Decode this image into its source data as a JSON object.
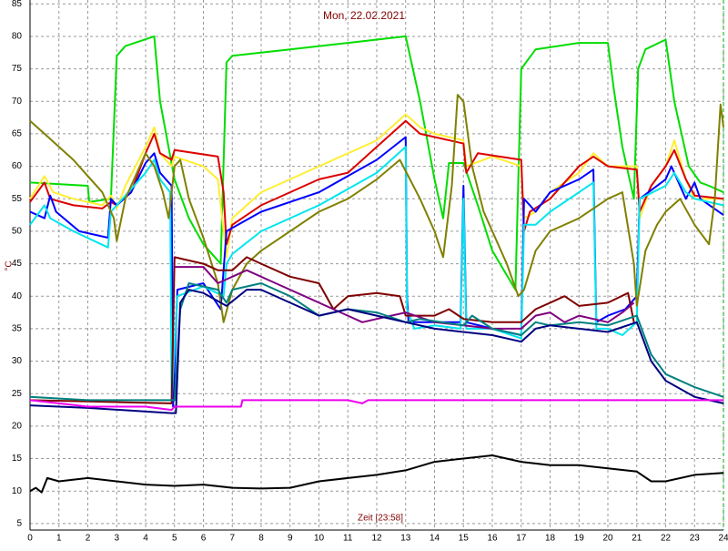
{
  "chart_data": {
    "type": "line",
    "title": "Mon, 22.02.2021",
    "xlabel": "Zeit [23:58]",
    "ylabel": "°C",
    "xlim": [
      0,
      24
    ],
    "ylim": [
      4,
      85.6
    ],
    "grid": true,
    "xticks": [
      0,
      1,
      2,
      3,
      4,
      5,
      6,
      7,
      8,
      9,
      10,
      11,
      12,
      13,
      14,
      15,
      16,
      17,
      18,
      19,
      20,
      21,
      22,
      23,
      24
    ],
    "yticks": [
      5,
      10,
      15,
      20,
      25,
      30,
      35,
      40,
      45,
      50,
      55,
      60,
      65,
      70,
      75,
      80,
      85
    ],
    "series": [
      {
        "color": "#00dd00",
        "x": [
          0,
          2,
          2.05,
          2.8,
          3,
          3.3,
          4.3,
          4.5,
          5,
          5.5,
          6,
          6.6,
          6.8,
          7,
          9,
          11,
          13,
          13.5,
          14,
          14.3,
          14.5,
          15,
          15.5,
          16,
          16.8,
          17,
          17.5,
          19,
          20,
          20.2,
          20.5,
          20.9,
          21.05,
          21.3,
          22,
          22.3,
          22.8,
          23.2,
          23.5,
          24
        ],
        "values": [
          57.5,
          57,
          54.5,
          55,
          77,
          78.5,
          80,
          70,
          58,
          52,
          48,
          45,
          76,
          77,
          78,
          79,
          80,
          70,
          58,
          52,
          60.5,
          60.5,
          54,
          47,
          41,
          75,
          78,
          79,
          79,
          72,
          63,
          55,
          75,
          78,
          79.5,
          70,
          60,
          57.5,
          57,
          56
        ]
      },
      {
        "color": "#ffee33",
        "x": [
          0,
          0.5,
          0.8,
          1.5,
          2,
          2.5,
          2.8,
          3,
          3.3,
          4,
          4.3,
          4.5,
          4.9,
          5,
          6,
          6.5,
          6.8,
          7,
          8,
          10,
          12,
          13,
          13.5,
          14,
          15,
          15.1,
          16,
          17,
          17.1,
          17.5,
          18,
          19,
          19.5,
          20,
          21,
          21.1,
          21.5,
          22,
          22.3,
          22.7,
          23,
          24
        ],
        "values": [
          55,
          58.5,
          56,
          55,
          54.5,
          54,
          55.5,
          53.5,
          57,
          63,
          66,
          62,
          60,
          61.5,
          60,
          58,
          46,
          52,
          56,
          60,
          64,
          68,
          66,
          65,
          64,
          60,
          61.5,
          60,
          52,
          53,
          56,
          59,
          62,
          60,
          60,
          52,
          57,
          60,
          64,
          58,
          55,
          55
        ]
      },
      {
        "color": "#dd0000",
        "x": [
          0,
          0.5,
          0.7,
          1.5,
          2.5,
          2.8,
          3,
          3.5,
          4,
          4.3,
          4.5,
          4.9,
          5,
          6.5,
          6.7,
          6.8,
          7,
          8,
          10,
          11,
          12,
          13,
          13.5,
          15,
          15.1,
          15.5,
          17,
          17.1,
          17.3,
          18,
          19,
          19.5,
          20,
          21,
          21.1,
          21.5,
          22,
          22.3,
          22.7,
          23,
          24
        ],
        "values": [
          54.5,
          57.5,
          55,
          54,
          53.5,
          54.5,
          54,
          56,
          62,
          65,
          62,
          61,
          62.5,
          61.5,
          56,
          48,
          51,
          54,
          58,
          59,
          63,
          67,
          65,
          63.5,
          59,
          62,
          61,
          50,
          53,
          55,
          60,
          61.5,
          60,
          59.5,
          53,
          57,
          60,
          62.5,
          58,
          55.5,
          55
        ]
      },
      {
        "color": "#0000ff",
        "x": [
          0,
          0.5,
          0.7,
          0.9,
          1.7,
          2.7,
          2.8,
          3,
          3.5,
          4,
          4.3,
          4.5,
          4.9,
          4.95,
          5.1,
          6,
          6.6,
          6.8,
          7,
          8,
          10,
          12,
          13,
          13.05,
          13.1,
          14,
          14.9,
          15,
          15.1,
          16,
          17,
          17.1,
          17.5,
          18,
          19,
          19.5,
          19.6,
          20,
          20.6,
          21,
          21.1,
          22,
          22.2,
          22.7,
          23,
          23.2,
          24
        ],
        "values": [
          53,
          52,
          55.5,
          53,
          50,
          49,
          55,
          54,
          56,
          60.5,
          62,
          59,
          57,
          23,
          41,
          42,
          38,
          50,
          50.5,
          53,
          56,
          61,
          64.5,
          40,
          36,
          36,
          36,
          57,
          36,
          35,
          34,
          55,
          53,
          56,
          58,
          59.5,
          36,
          37,
          38,
          40,
          55,
          58,
          60,
          55,
          57.5,
          55,
          52.5
        ]
      },
      {
        "color": "#00e5ee",
        "x": [
          0,
          0.5,
          0.7,
          1.5,
          2.7,
          2.8,
          3,
          4,
          4.3,
          4.5,
          4.85,
          4.9,
          5.1,
          6,
          6.7,
          6.8,
          7,
          8,
          10,
          12,
          13,
          13.05,
          13.3,
          14,
          14.9,
          15,
          15.1,
          16,
          17,
          17.1,
          17.5,
          18,
          19,
          19.5,
          19.6,
          20,
          20.5,
          21,
          21.1,
          22,
          22.3,
          22.7,
          23,
          24
        ],
        "values": [
          51,
          54,
          52,
          50,
          47.5,
          53,
          54,
          59,
          61,
          58,
          56,
          24,
          40,
          41.5,
          40,
          45,
          46.5,
          50,
          54,
          59,
          63,
          38,
          35,
          35.5,
          35,
          55,
          35,
          35,
          33.5,
          51,
          51,
          53,
          56,
          57.5,
          35,
          35,
          34,
          36,
          55,
          57,
          59,
          56,
          55,
          54
        ]
      },
      {
        "color": "#808000",
        "x": [
          0,
          0.5,
          1,
          1.5,
          2,
          2.5,
          2.9,
          3,
          3.3,
          3.8,
          4,
          4.3,
          4.6,
          4.8,
          5,
          5.2,
          5.5,
          6,
          6.5,
          6.7,
          7,
          7.5,
          8,
          9,
          10,
          11,
          12,
          12.8,
          13.5,
          14,
          14.3,
          14.6,
          14.8,
          15,
          15.3,
          15.7,
          16,
          16.5,
          16.9,
          17.1,
          17.5,
          18,
          19,
          20,
          20.5,
          20.9,
          21,
          21.3,
          21.7,
          22,
          22.5,
          23,
          23.5,
          23.7,
          23.9,
          24
        ],
        "values": [
          67,
          65,
          63,
          61,
          58.5,
          56,
          52,
          48.5,
          55,
          60,
          62,
          60,
          56,
          52,
          60,
          61,
          55,
          49,
          42,
          36,
          41,
          45,
          47,
          50,
          53,
          55,
          58,
          61,
          55,
          50,
          46,
          57,
          71,
          70,
          60,
          53,
          50,
          45,
          40,
          41,
          47,
          50,
          52,
          55,
          56,
          45,
          38.5,
          47,
          51,
          53,
          55,
          51,
          48,
          55,
          69.5,
          66
        ]
      },
      {
        "color": "#800000",
        "x": [
          0,
          2,
          4.9,
          5,
          6,
          6.5,
          7,
          7.5,
          8,
          9,
          10,
          10.5,
          11,
          12,
          12.8,
          13,
          14,
          14.5,
          15,
          16,
          17,
          17.5,
          18,
          18.5,
          19,
          20,
          20.7,
          20.9
        ],
        "values": [
          24,
          23.8,
          23.5,
          46,
          45,
          44,
          44,
          46,
          45,
          43,
          42,
          38,
          40,
          40.5,
          40,
          37,
          37,
          38,
          36.5,
          36,
          36,
          38,
          39,
          40,
          38.5,
          39,
          40.5,
          36
        ]
      },
      {
        "color": "#800080",
        "x": [
          5,
          6,
          6.5,
          7,
          7.5,
          8.5,
          9.5,
          10.5,
          11.5,
          12.5,
          13,
          14,
          15,
          16,
          17,
          17.5,
          18,
          18.5,
          19,
          20,
          20.5,
          20.9
        ],
        "values": [
          44.5,
          44.5,
          42,
          43,
          44,
          42,
          40,
          38,
          36,
          37,
          37.5,
          36,
          35.5,
          35,
          35,
          37,
          37.5,
          36,
          37,
          36,
          37.5,
          39
        ]
      },
      {
        "color": "#008080",
        "x": [
          0,
          2,
          4.9,
          5,
          5.2,
          5.5,
          6.5,
          6.8,
          7,
          8,
          9,
          10,
          11,
          12,
          13,
          13.5,
          15,
          15.3,
          16,
          17,
          17.5,
          18,
          19,
          20,
          21,
          21.5,
          22,
          23,
          24
        ],
        "values": [
          24.5,
          24,
          24,
          24,
          38,
          42,
          41,
          39,
          41,
          42,
          40,
          37,
          38,
          37.5,
          36,
          36.5,
          35.5,
          37,
          35,
          34,
          36,
          35.5,
          36,
          35.5,
          37,
          31,
          28,
          26,
          24.5
        ]
      },
      {
        "color": "#000080",
        "x": [
          0,
          2,
          4.9,
          5.05,
          5.2,
          5.5,
          6,
          6.8,
          7.5,
          8,
          9,
          10,
          11,
          12,
          13,
          14,
          15,
          16,
          17,
          17.5,
          18,
          19,
          20,
          21,
          21.5,
          22,
          23,
          24
        ],
        "values": [
          23.2,
          22.8,
          22,
          22,
          39,
          41,
          40.5,
          38.5,
          41,
          41,
          39,
          37,
          38,
          37,
          36,
          35,
          34.5,
          34,
          33,
          35,
          35.5,
          35,
          34.5,
          36,
          30,
          27,
          24.5,
          23.5
        ]
      },
      {
        "color": "#ee00ee",
        "x": [
          0,
          1,
          2,
          4,
          4.9,
          5,
          7.3,
          7.35,
          11,
          11.5,
          11.7,
          24
        ],
        "values": [
          24,
          23.5,
          23,
          23,
          22.5,
          23,
          23,
          24,
          24,
          23.5,
          24,
          24
        ]
      },
      {
        "color": "#000000",
        "x": [
          0,
          0.2,
          0.4,
          0.6,
          1,
          2,
          3,
          4,
          5,
          6,
          7,
          8,
          9,
          10,
          11,
          12,
          13,
          14,
          15,
          16,
          17,
          18,
          19,
          20,
          21,
          21.5,
          22,
          23,
          24
        ],
        "values": [
          10,
          10.5,
          9.8,
          12,
          11.5,
          12,
          11.5,
          11,
          10.8,
          11,
          10.5,
          10.4,
          10.5,
          11.5,
          12,
          12.5,
          13.2,
          14.5,
          15,
          15.5,
          14.5,
          14,
          14,
          13.5,
          13,
          11.5,
          11.5,
          12.5,
          12.8
        ]
      }
    ]
  }
}
